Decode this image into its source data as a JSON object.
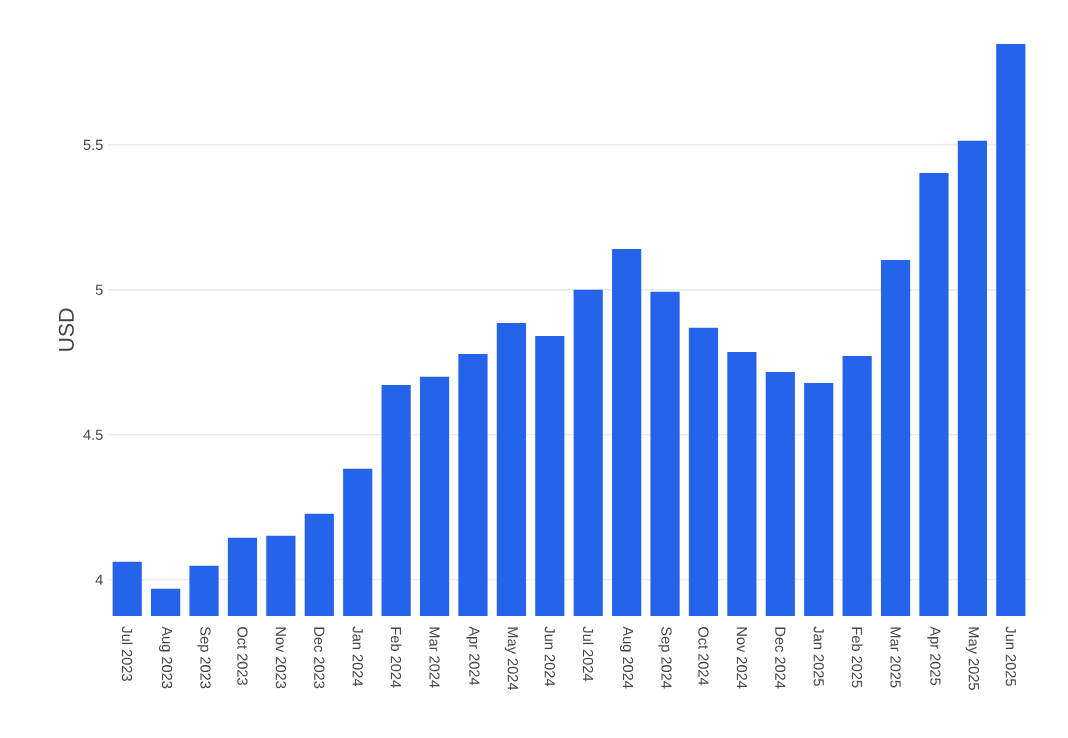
{
  "chart_data": {
    "type": "bar",
    "ylabel": "USD",
    "categories": [
      "Jul 2023",
      "Aug 2023",
      "Sep 2023",
      "Oct 2023",
      "Nov 2023",
      "Dec 2023",
      "Jan 2024",
      "Feb 2024",
      "Mar 2024",
      "Apr 2024",
      "May 2024",
      "Jun 2024",
      "Jul 2024",
      "Aug 2024",
      "Sep 2024",
      "Oct 2024",
      "Nov 2024",
      "Dec 2024",
      "Jan 2025",
      "Feb 2025",
      "Mar 2025",
      "Apr 2025",
      "May 2025",
      "Jun 2025"
    ],
    "values": [
      4.062,
      3.969,
      4.048,
      4.145,
      4.152,
      4.228,
      4.383,
      4.672,
      4.7,
      4.779,
      4.886,
      4.841,
      5.0,
      5.141,
      4.993,
      4.869,
      4.786,
      4.717,
      4.679,
      4.772,
      5.103,
      5.403,
      5.514,
      5.848
    ],
    "color": "#2563eb",
    "ylim": [
      3.875,
      5.848
    ],
    "yticks": [
      {
        "value": 4,
        "label": "4"
      },
      {
        "value": 4.5,
        "label": "4.5"
      },
      {
        "value": 5,
        "label": "5"
      },
      {
        "value": 5.5,
        "label": "5.5"
      }
    ],
    "grid": "y"
  }
}
